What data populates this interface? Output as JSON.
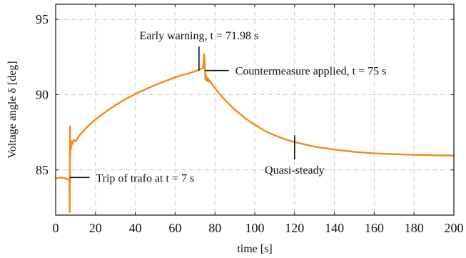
{
  "chart_data": {
    "type": "line",
    "title": "",
    "xlabel": "time [s]",
    "ylabel": "Voltage angle δ [deg]",
    "xlim": [
      0,
      200
    ],
    "ylim": [
      82,
      96
    ],
    "xticks": [
      0,
      20,
      40,
      60,
      80,
      100,
      120,
      140,
      160,
      180,
      200
    ],
    "yticks": [
      85,
      90,
      95
    ],
    "grid": true,
    "line_color": "#f28a1a",
    "series": [
      {
        "x": [
          0,
          3,
          6,
          6.9,
          7.05,
          7.15,
          7.25,
          7.35,
          7.5,
          7.7,
          8.0,
          8.4,
          9,
          10,
          11,
          12,
          13,
          14,
          15,
          17,
          20,
          25,
          30,
          35,
          40,
          45,
          50,
          55,
          60,
          65,
          70,
          72,
          74,
          74.6,
          74.9,
          75.2,
          75.5,
          76,
          76.5,
          77,
          77.5,
          78,
          79,
          80,
          82,
          85,
          90,
          95,
          100,
          105,
          110,
          115,
          120,
          130,
          140,
          150,
          160,
          170,
          180,
          190,
          200
        ],
        "y": [
          84.45,
          84.5,
          84.4,
          84.3,
          82.2,
          85.2,
          87.9,
          86.0,
          86.8,
          86.4,
          86.9,
          86.7,
          87.0,
          86.9,
          87.1,
          87.3,
          87.45,
          87.6,
          87.75,
          88.0,
          88.35,
          88.85,
          89.3,
          89.7,
          90.05,
          90.35,
          90.65,
          90.9,
          91.15,
          91.35,
          91.55,
          91.65,
          91.75,
          92.7,
          91.9,
          91.0,
          91.3,
          90.9,
          91.1,
          90.85,
          90.95,
          90.8,
          90.6,
          90.45,
          90.1,
          89.65,
          89.0,
          88.45,
          88.0,
          87.6,
          87.3,
          87.05,
          86.85,
          86.55,
          86.35,
          86.2,
          86.1,
          86.05,
          86.0,
          85.98,
          85.95
        ]
      }
    ],
    "annotations": [
      {
        "text": "Trip of trafo at t = 7 s",
        "x": 7,
        "y": 84.5,
        "direction": "horizontal",
        "length": 10,
        "anchor": "right"
      },
      {
        "text": "Early warning, t = 71.98 s",
        "x": 71.98,
        "y": 91.6,
        "direction": "vertical",
        "length": 1.6,
        "anchor": "above"
      },
      {
        "text": "Countermeasure applied, t = 75 s",
        "x": 75,
        "y": 91.6,
        "direction": "horizontal",
        "length": 12,
        "anchor": "right"
      },
      {
        "text": "Quasi-steady",
        "x": 120,
        "y": 87.3,
        "direction": "vertical",
        "length": -1.6,
        "anchor": "below"
      }
    ]
  }
}
